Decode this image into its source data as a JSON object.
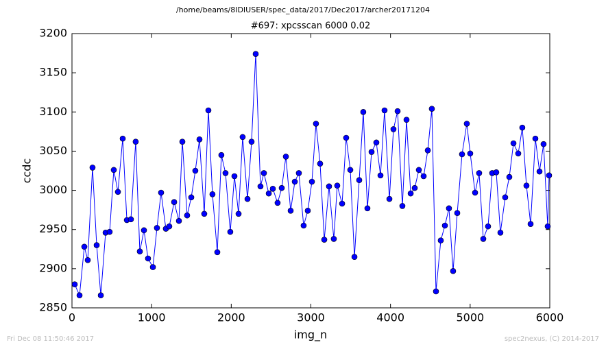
{
  "chart_data": {
    "type": "line",
    "suptitle": "/home/beams/8IDIUSER/spec_data/2017/Dec2017/archer20171204",
    "title": "#697: xpcsscan 6000 0.02",
    "xlabel": "img_n",
    "ylabel": "ccdc",
    "footer_left": "Fri Dec 08 11:50:46 2017",
    "footer_right": "spec2nexus, (C) 2014-2017",
    "xlim": [
      0,
      6000
    ],
    "ylim": [
      2850,
      3200
    ],
    "xticks": [
      0,
      1000,
      2000,
      3000,
      4000,
      5000,
      6000
    ],
    "yticks": [
      2850,
      2900,
      2950,
      3000,
      3050,
      3100,
      3150,
      3200
    ],
    "grid": false,
    "marker": "circle",
    "series": [
      {
        "color": "#0000ff",
        "x": [
          34,
          95,
          155,
          198,
          258,
          310,
          362,
          422,
          473,
          525,
          577,
          637,
          689,
          740,
          800,
          852,
          904,
          955,
          1016,
          1067,
          1119,
          1179,
          1222,
          1283,
          1343,
          1386,
          1446,
          1498,
          1549,
          1601,
          1661,
          1713,
          1764,
          1825,
          1876,
          1928,
          1988,
          2040,
          2092,
          2143,
          2204,
          2255,
          2307,
          2367,
          2410,
          2471,
          2522,
          2582,
          2634,
          2686,
          2746,
          2798,
          2849,
          2909,
          2961,
          3013,
          3064,
          3116,
          3168,
          3228,
          3288,
          3331,
          3392,
          3443,
          3495,
          3547,
          3607,
          3658,
          3710,
          3762,
          3822,
          3874,
          3925,
          3986,
          4037,
          4089,
          4149,
          4201,
          4253,
          4304,
          4356,
          4416,
          4468,
          4519,
          4571,
          4631,
          4683,
          4734,
          4786,
          4838,
          4898,
          4958,
          5001,
          5062,
          5113,
          5165,
          5225,
          5277,
          5328,
          5380,
          5440,
          5492,
          5544,
          5604,
          5655,
          5707,
          5759,
          5819,
          5871,
          5922,
          5974,
          5991
        ],
        "values": [
          2880,
          2866,
          2928,
          2911,
          3029,
          2930,
          2866,
          2946,
          2947,
          3026,
          2998,
          3066,
          2962,
          2963,
          3062,
          2922,
          2949,
          2913,
          2902,
          2952,
          2997,
          2951,
          2954,
          2985,
          2961,
          3062,
          2968,
          2991,
          3025,
          3065,
          2970,
          3102,
          2995,
          2921,
          3045,
          3022,
          2947,
          3018,
          2970,
          3068,
          2989,
          3062,
          3174,
          3005,
          3022,
          2996,
          3002,
          2984,
          3003,
          3043,
          2974,
          3011,
          3022,
          2955,
          2974,
          3011,
          3085,
          3034,
          2937,
          3005,
          2938,
          3006,
          2983,
          3067,
          3026,
          2915,
          3013,
          3100,
          2977,
          3049,
          3061,
          3019,
          3102,
          2989,
          3078,
          3101,
          2980,
          3090,
          2996,
          3003,
          3026,
          3018,
          3051,
          3104,
          2871,
          2936,
          2955,
          2977,
          2897,
          2971,
          3046,
          3085,
          3047,
          2997,
          3022,
          2938,
          2954,
          3022,
          3023,
          2946,
          2991,
          3017,
          3060,
          3047,
          3080,
          3006,
          2957,
          3066,
          3024,
          3059,
          2954,
          3019
        ]
      }
    ]
  }
}
